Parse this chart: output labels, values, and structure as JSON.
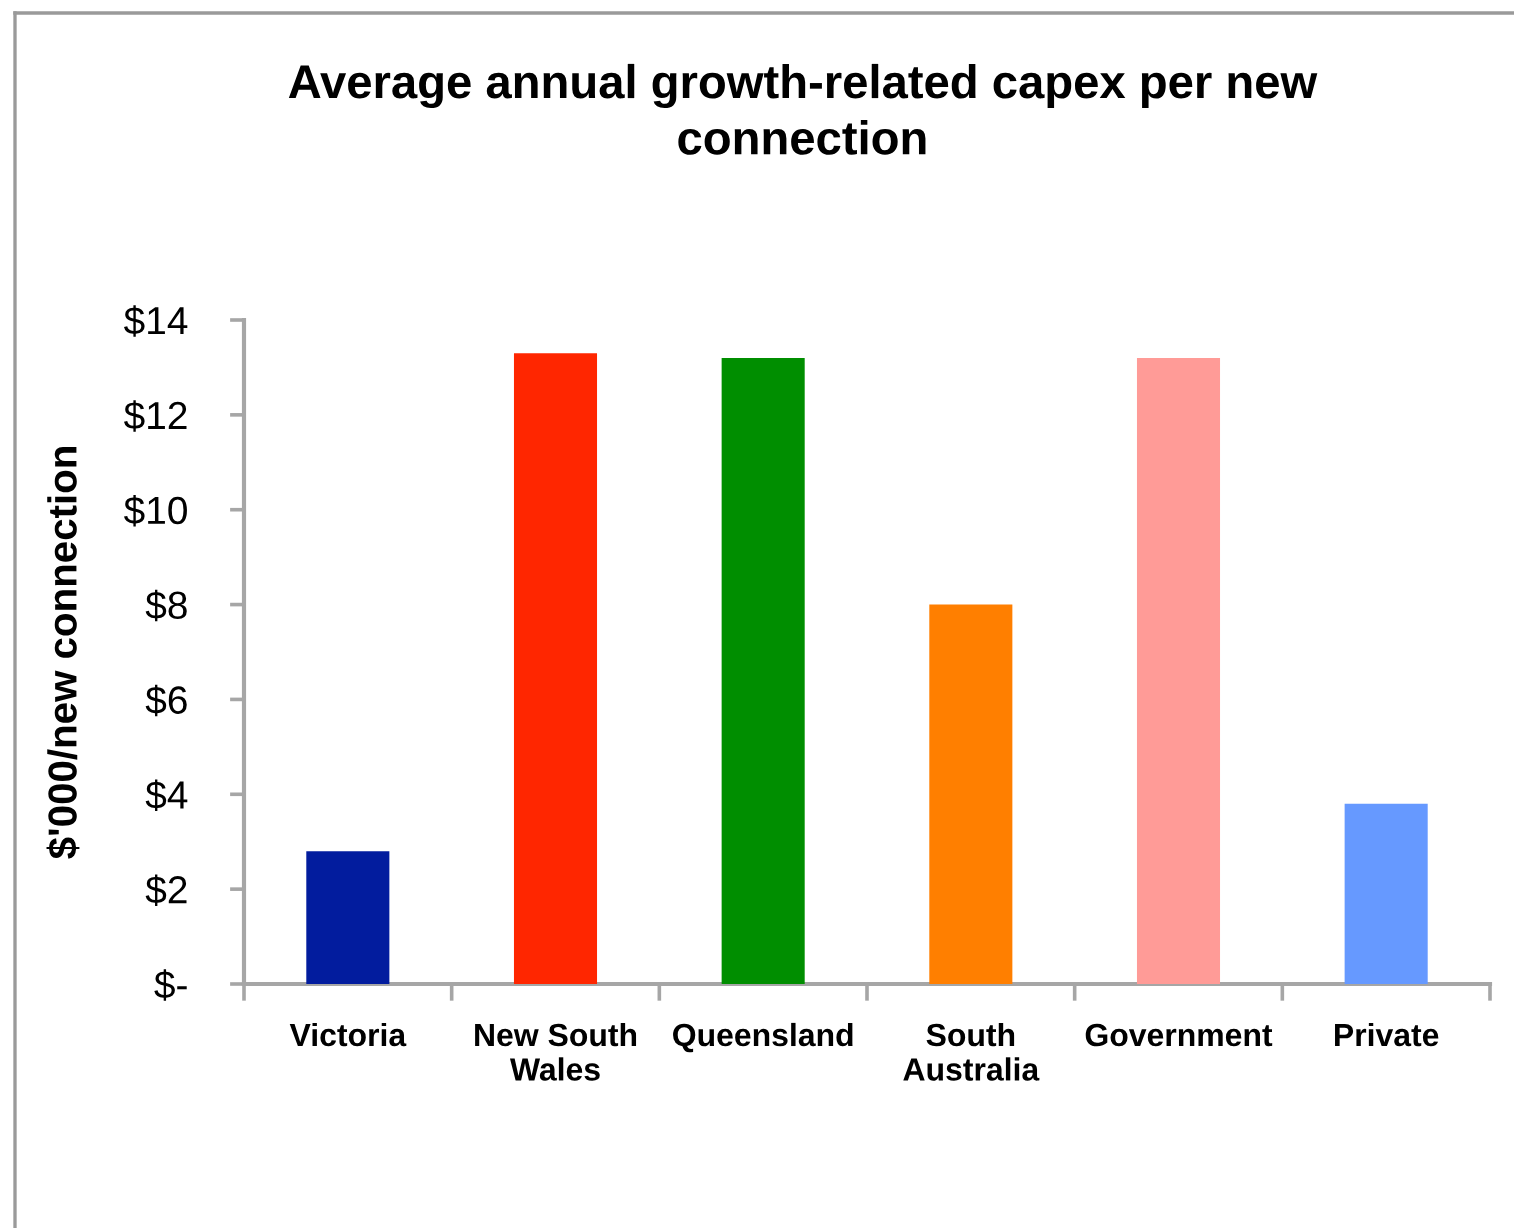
{
  "chart_data": {
    "type": "bar",
    "title": "Average annual growth-related capex per new\nconnection",
    "ylabel": "$'000/new connection",
    "categories": [
      "Victoria",
      "New South\nWales",
      "Queensland",
      "South\nAustralia",
      "Government",
      "Private"
    ],
    "values": [
      2.8,
      13.3,
      13.2,
      8.0,
      13.2,
      3.8
    ],
    "colors": [
      "#021c9e",
      "#ff2600",
      "#008e00",
      "#ff7f00",
      "#ff9b97",
      "#6699ff"
    ],
    "ylim": [
      0,
      14
    ],
    "yticks": [
      {
        "value": 0,
        "label": "$-"
      },
      {
        "value": 2,
        "label": "$2"
      },
      {
        "value": 4,
        "label": "$4"
      },
      {
        "value": 6,
        "label": "$6"
      },
      {
        "value": 8,
        "label": "$8"
      },
      {
        "value": 10,
        "label": "$10"
      },
      {
        "value": 12,
        "label": "$12"
      },
      {
        "value": 14,
        "label": "$14"
      }
    ]
  }
}
